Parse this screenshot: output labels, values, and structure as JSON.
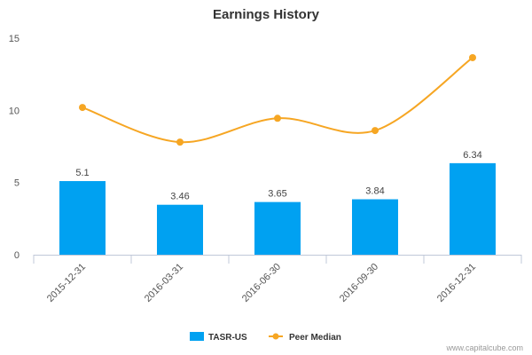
{
  "chart_data": {
    "type": "bar",
    "title": "Earnings History",
    "categories": [
      "2015-12-31",
      "2016-03-31",
      "2016-06-30",
      "2016-09-30",
      "2016-12-31"
    ],
    "series": [
      {
        "name": "TASR-US",
        "type": "bar",
        "values": [
          5.1,
          3.46,
          3.65,
          3.84,
          6.34
        ],
        "labels": [
          "5.1",
          "3.46",
          "3.65",
          "3.84",
          "6.34"
        ]
      },
      {
        "name": "Peer Median",
        "type": "line",
        "values": [
          10.2,
          7.8,
          9.45,
          8.6,
          13.65
        ]
      }
    ],
    "yticks": [
      "0",
      "5",
      "10",
      "15"
    ],
    "ylim": [
      0,
      15
    ],
    "xlabel": "",
    "ylabel": "",
    "grid": false,
    "legend": "bottom-center",
    "colors": {
      "bar": "#00a1f1",
      "line": "#f6a623",
      "axis": "#c0c8d8"
    }
  },
  "credit": "www.capitalcube.com"
}
